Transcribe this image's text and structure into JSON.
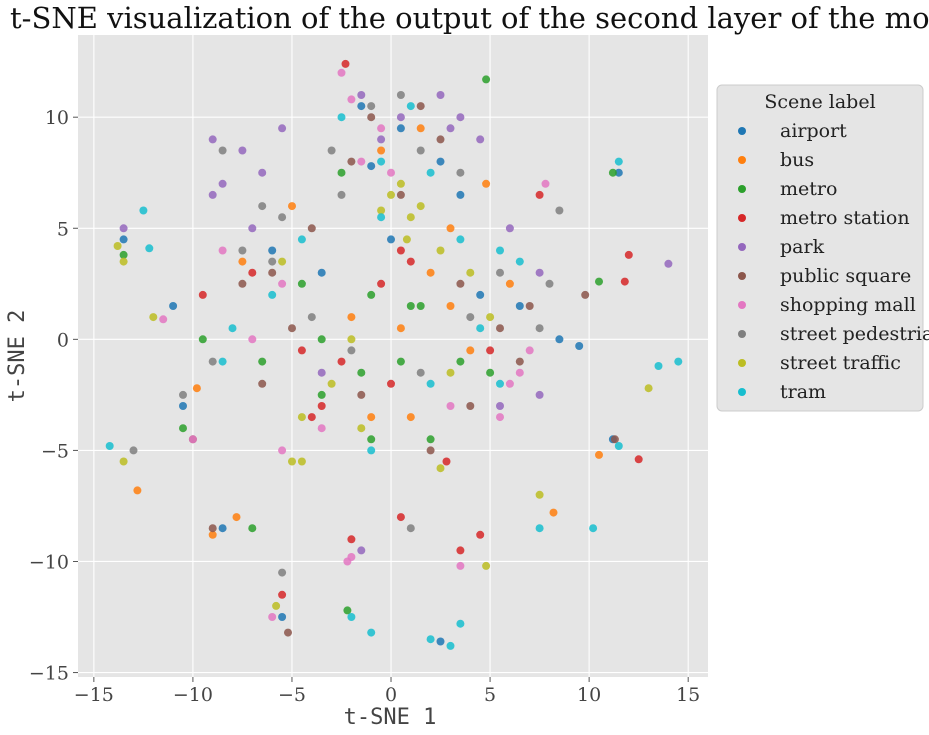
{
  "chart_data": {
    "type": "scatter",
    "title": "t-SNE visualization of the output of the second layer of the model",
    "xlabel": "t-SNE 1",
    "ylabel": "t-SNE 2",
    "xlim": [
      -15.8,
      16
    ],
    "ylim": [
      -15.2,
      13.7
    ],
    "xticks": [
      -15,
      -10,
      -5,
      0,
      5,
      10,
      15
    ],
    "yticks": [
      -15,
      -10,
      -5,
      0,
      5,
      10
    ],
    "xtick_labels": [
      "−15",
      "−10",
      "−5",
      "0",
      "5",
      "10",
      "15"
    ],
    "ytick_labels": [
      "−15",
      "−10",
      "−5",
      "0",
      "5",
      "10"
    ],
    "grid": true,
    "background": "#e5e5e5",
    "legend": {
      "title": "Scene label",
      "placement": "outside-right"
    },
    "series": [
      {
        "name": "airport",
        "color": "#1f77b4",
        "points": [
          [
            -1.5,
            10.5
          ],
          [
            0.5,
            9.5
          ],
          [
            2.5,
            8.0
          ],
          [
            -1.0,
            7.8
          ],
          [
            3.5,
            6.5
          ],
          [
            0.0,
            4.5
          ],
          [
            -6.0,
            4.0
          ],
          [
            -3.5,
            3.0
          ],
          [
            4.5,
            2.0
          ],
          [
            6.5,
            1.5
          ],
          [
            8.5,
            0.0
          ],
          [
            9.5,
            -0.3
          ],
          [
            11.2,
            -4.5
          ],
          [
            11.5,
            7.5
          ],
          [
            -13.5,
            4.5
          ],
          [
            -11.0,
            1.5
          ],
          [
            -10.5,
            -3.0
          ],
          [
            -5.5,
            -12.5
          ],
          [
            -8.5,
            -8.5
          ],
          [
            2.5,
            -13.6
          ]
        ]
      },
      {
        "name": "bus",
        "color": "#ff7f0e",
        "points": [
          [
            -0.5,
            8.5
          ],
          [
            1.5,
            9.5
          ],
          [
            3.0,
            5.0
          ],
          [
            4.8,
            7.0
          ],
          [
            2.0,
            3.0
          ],
          [
            -2.0,
            1.0
          ],
          [
            0.5,
            0.5
          ],
          [
            4.0,
            -0.5
          ],
          [
            3.0,
            1.5
          ],
          [
            -7.5,
            3.5
          ],
          [
            -5.0,
            6.0
          ],
          [
            6.0,
            2.5
          ],
          [
            -1.0,
            -3.5
          ],
          [
            1.0,
            -3.5
          ],
          [
            -12.8,
            -6.8
          ],
          [
            -9.8,
            -2.2
          ],
          [
            10.5,
            -5.2
          ],
          [
            -7.8,
            -8.0
          ],
          [
            8.2,
            -7.8
          ],
          [
            -9.0,
            -8.8
          ]
        ]
      },
      {
        "name": "metro",
        "color": "#2ca02c",
        "points": [
          [
            4.8,
            11.7
          ],
          [
            -2.5,
            7.5
          ],
          [
            1.5,
            1.5
          ],
          [
            -1.0,
            2.0
          ],
          [
            -3.5,
            0.0
          ],
          [
            0.5,
            -1.0
          ],
          [
            -1.5,
            -1.5
          ],
          [
            3.5,
            -1.0
          ],
          [
            -4.5,
            2.5
          ],
          [
            -6.5,
            -1.0
          ],
          [
            -3.5,
            -2.5
          ],
          [
            1.0,
            1.5
          ],
          [
            -2.2,
            -12.2
          ],
          [
            -1.0,
            -4.5
          ],
          [
            -7.0,
            -8.5
          ],
          [
            5.0,
            -1.5
          ],
          [
            2.0,
            -4.5
          ],
          [
            -9.5,
            0.0
          ],
          [
            10.5,
            2.6
          ],
          [
            11.2,
            7.5
          ],
          [
            -13.5,
            3.8
          ],
          [
            -10.5,
            -4.0
          ]
        ]
      },
      {
        "name": "metro station",
        "color": "#d62728",
        "points": [
          [
            -2.3,
            12.4
          ],
          [
            0.5,
            4.0
          ],
          [
            -0.5,
            2.5
          ],
          [
            1.0,
            3.5
          ],
          [
            5.0,
            -0.5
          ],
          [
            -7.0,
            3.0
          ],
          [
            -2.5,
            -1.0
          ],
          [
            0.0,
            -2.0
          ],
          [
            -4.5,
            -0.5
          ],
          [
            -3.5,
            -3.0
          ],
          [
            2.8,
            -5.5
          ],
          [
            4.5,
            -8.8
          ],
          [
            -2.0,
            -9.0
          ],
          [
            0.5,
            -8.0
          ],
          [
            -5.5,
            -11.5
          ],
          [
            12.0,
            3.8
          ],
          [
            11.8,
            2.6
          ],
          [
            12.5,
            -5.4
          ],
          [
            7.5,
            6.5
          ],
          [
            -9.5,
            2.0
          ],
          [
            -4.0,
            -3.5
          ],
          [
            3.5,
            -9.5
          ]
        ]
      },
      {
        "name": "park",
        "color": "#9467bd",
        "points": [
          [
            -9.0,
            9.0
          ],
          [
            -7.5,
            8.5
          ],
          [
            -8.5,
            7.0
          ],
          [
            -6.5,
            7.5
          ],
          [
            -5.5,
            9.5
          ],
          [
            -1.5,
            11.0
          ],
          [
            0.5,
            10.0
          ],
          [
            2.5,
            11.0
          ],
          [
            3.5,
            10.0
          ],
          [
            4.5,
            9.0
          ],
          [
            3.0,
            9.5
          ],
          [
            -0.5,
            9.0
          ],
          [
            6.0,
            5.0
          ],
          [
            7.5,
            3.0
          ],
          [
            -9.0,
            6.5
          ],
          [
            -7.0,
            5.0
          ],
          [
            7.5,
            -2.5
          ],
          [
            5.5,
            -3.0
          ],
          [
            14.0,
            3.4
          ],
          [
            -3.5,
            -1.5
          ],
          [
            -1.5,
            -9.5
          ],
          [
            -13.5,
            5.0
          ]
        ]
      },
      {
        "name": "public square",
        "color": "#8c564b",
        "points": [
          [
            -1.0,
            10.0
          ],
          [
            1.5,
            10.5
          ],
          [
            2.5,
            9.0
          ],
          [
            -2.0,
            8.0
          ],
          [
            0.5,
            6.5
          ],
          [
            -6.0,
            3.0
          ],
          [
            -4.0,
            5.0
          ],
          [
            -7.5,
            2.5
          ],
          [
            3.5,
            2.5
          ],
          [
            5.5,
            0.5
          ],
          [
            7.0,
            1.5
          ],
          [
            -5.0,
            0.5
          ],
          [
            6.5,
            -1.0
          ],
          [
            -1.5,
            -2.5
          ],
          [
            4.0,
            -3.0
          ],
          [
            -10.0,
            -4.5
          ],
          [
            -9.0,
            -8.5
          ],
          [
            -5.2,
            -13.2
          ],
          [
            2.0,
            -5.0
          ],
          [
            -6.5,
            -2.0
          ],
          [
            11.3,
            -4.5
          ],
          [
            9.8,
            2.0
          ]
        ]
      },
      {
        "name": "shopping mall",
        "color": "#e377c2",
        "points": [
          [
            -2.5,
            12.0
          ],
          [
            -2.0,
            10.8
          ],
          [
            -1.5,
            8.0
          ],
          [
            0.0,
            7.5
          ],
          [
            -0.5,
            9.5
          ],
          [
            -5.5,
            2.5
          ],
          [
            -7.0,
            0.0
          ],
          [
            -8.5,
            4.0
          ],
          [
            6.5,
            -1.5
          ],
          [
            6.0,
            -2.0
          ],
          [
            7.0,
            -0.5
          ],
          [
            -6.0,
            -12.5
          ],
          [
            -2.2,
            -10.0
          ],
          [
            -2.0,
            -9.8
          ],
          [
            3.5,
            -10.2
          ],
          [
            -10.0,
            -4.5
          ],
          [
            7.8,
            7.0
          ],
          [
            5.5,
            -3.5
          ],
          [
            3.0,
            -3.0
          ],
          [
            -3.5,
            -4.0
          ],
          [
            -11.5,
            0.9
          ],
          [
            -5.5,
            -5.0
          ]
        ]
      },
      {
        "name": "street pedestrian",
        "color": "#7f7f7f",
        "points": [
          [
            -1.0,
            10.5
          ],
          [
            0.5,
            11.0
          ],
          [
            1.5,
            8.5
          ],
          [
            3.5,
            7.5
          ],
          [
            -3.0,
            8.5
          ],
          [
            -2.5,
            6.5
          ],
          [
            -6.5,
            6.0
          ],
          [
            -7.5,
            4.0
          ],
          [
            -5.5,
            5.5
          ],
          [
            -8.5,
            8.5
          ],
          [
            -6.0,
            3.5
          ],
          [
            4.0,
            1.0
          ],
          [
            5.5,
            3.0
          ],
          [
            7.5,
            0.5
          ],
          [
            8.0,
            2.5
          ],
          [
            -4.0,
            1.0
          ],
          [
            -2.0,
            -0.5
          ],
          [
            1.5,
            -1.5
          ],
          [
            -10.5,
            -2.5
          ],
          [
            -9.0,
            -1.0
          ],
          [
            -5.5,
            -10.5
          ],
          [
            1.0,
            -8.5
          ],
          [
            8.5,
            5.8
          ],
          [
            -13.0,
            -5.0
          ]
        ]
      },
      {
        "name": "street traffic",
        "color": "#bcbd22",
        "points": [
          [
            0.0,
            6.5
          ],
          [
            1.0,
            5.5
          ],
          [
            0.5,
            7.0
          ],
          [
            -0.5,
            5.8
          ],
          [
            1.5,
            6.0
          ],
          [
            0.8,
            4.5
          ],
          [
            2.5,
            4.0
          ],
          [
            4.0,
            3.0
          ],
          [
            3.0,
            -1.5
          ],
          [
            5.0,
            1.0
          ],
          [
            -2.0,
            0.0
          ],
          [
            -3.0,
            -2.0
          ],
          [
            -4.5,
            -3.5
          ],
          [
            -5.0,
            -5.5
          ],
          [
            -13.5,
            3.5
          ],
          [
            -13.8,
            4.2
          ],
          [
            -12.0,
            1.0
          ],
          [
            7.5,
            -7.0
          ],
          [
            4.8,
            -10.2
          ],
          [
            2.5,
            -5.8
          ],
          [
            -13.5,
            -5.5
          ],
          [
            -5.8,
            -12.0
          ],
          [
            13.0,
            -2.2
          ],
          [
            -4.5,
            -5.5
          ],
          [
            -5.5,
            3.5
          ],
          [
            -1.5,
            -4.0
          ]
        ]
      },
      {
        "name": "tram",
        "color": "#17becf",
        "points": [
          [
            -2.5,
            10.0
          ],
          [
            1.0,
            10.5
          ],
          [
            -0.5,
            8.0
          ],
          [
            2.0,
            7.5
          ],
          [
            -0.5,
            5.5
          ],
          [
            3.5,
            4.5
          ],
          [
            5.5,
            4.0
          ],
          [
            6.5,
            3.5
          ],
          [
            4.5,
            0.5
          ],
          [
            5.5,
            -2.0
          ],
          [
            -4.5,
            4.5
          ],
          [
            -6.0,
            2.0
          ],
          [
            -8.0,
            0.5
          ],
          [
            -12.5,
            5.8
          ],
          [
            -12.2,
            4.1
          ],
          [
            -2.0,
            -12.5
          ],
          [
            -1.0,
            -13.2
          ],
          [
            2.0,
            -13.5
          ],
          [
            3.0,
            -13.8
          ],
          [
            3.5,
            -12.8
          ],
          [
            7.5,
            -8.5
          ],
          [
            10.2,
            -8.5
          ],
          [
            11.5,
            8.0
          ],
          [
            13.5,
            -1.2
          ],
          [
            14.5,
            -1.0
          ],
          [
            -14.2,
            -4.8
          ],
          [
            -1.0,
            -5.0
          ],
          [
            11.5,
            -4.8
          ],
          [
            -8.5,
            -1.0
          ],
          [
            2.0,
            -2.0
          ]
        ]
      }
    ]
  }
}
